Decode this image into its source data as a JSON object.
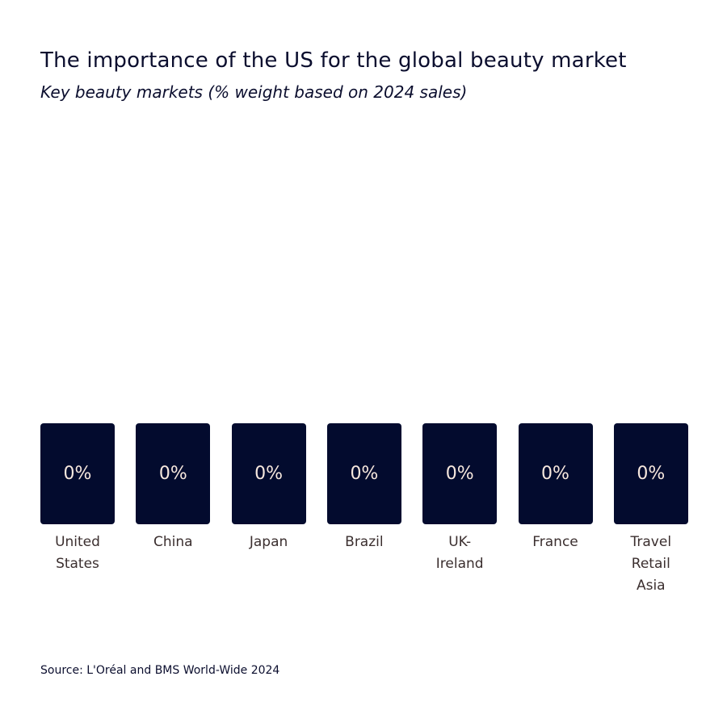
{
  "chart_data": {
    "type": "bar",
    "title": "The importance of the US for the global beauty market",
    "subtitle": "Key beauty markets (% weight based on 2024 sales)",
    "categories": [
      "United States",
      "China",
      "Japan",
      "Brazil",
      "UK-Ireland",
      "France",
      "Travel Retail Asia"
    ],
    "category_lines": [
      [
        "United",
        "States"
      ],
      [
        "China"
      ],
      [
        "Japan"
      ],
      [
        "Brazil"
      ],
      [
        "UK-",
        "Ireland"
      ],
      [
        "France"
      ],
      [
        "Travel",
        "Retail",
        "Asia"
      ]
    ],
    "values": [
      0,
      0,
      0,
      0,
      0,
      0,
      0
    ],
    "value_labels": [
      "0%",
      "0%",
      "0%",
      "0%",
      "0%",
      "0%",
      "0%"
    ],
    "unit": "%",
    "source": "Source: L'Oréal and BMS World-Wide 2024",
    "colors": {
      "bar": "#030b2e",
      "value_text": "#f7e8de",
      "label": "#3b2f2f",
      "title": "#0b0e2e"
    }
  }
}
